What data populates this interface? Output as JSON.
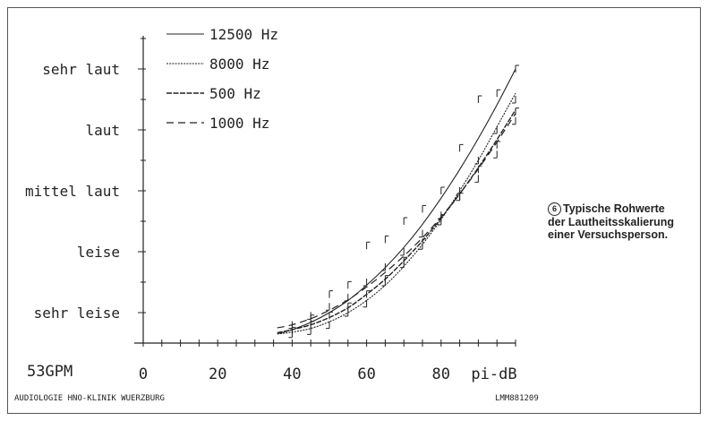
{
  "chart_data": {
    "type": "line",
    "title": "",
    "xlabel": "pi-dB",
    "ylabel": "",
    "xlim": [
      0,
      100
    ],
    "ylim": [
      0,
      5
    ],
    "x_ticks": [
      0,
      20,
      40,
      60,
      80
    ],
    "y_categories": [
      "sehr leise",
      "leise",
      "mittel laut",
      "laut",
      "sehr laut"
    ],
    "legend_position": "top-left",
    "series": [
      {
        "name": "12500 Hz",
        "dash": "solid",
        "curve_x": [
          36,
          40,
          45,
          50,
          55,
          60,
          65,
          70,
          75,
          80,
          85,
          90,
          95,
          100
        ],
        "curve_y": [
          -0.35,
          -0.28,
          -0.16,
          0.0,
          0.2,
          0.45,
          0.74,
          1.07,
          1.45,
          1.88,
          2.35,
          2.86,
          3.41,
          4.0
        ],
        "raw_x": [
          40,
          45,
          50,
          55,
          60,
          65,
          70,
          75,
          80,
          85,
          90,
          95,
          100
        ],
        "raw_y": [
          -0.25,
          -0.1,
          0.3,
          0.45,
          1.1,
          1.2,
          1.5,
          1.7,
          2.0,
          2.7,
          3.5,
          3.6,
          4.0
        ]
      },
      {
        "name": "8000 Hz",
        "dash": "fine",
        "curve_x": [
          36,
          40,
          45,
          50,
          55,
          60,
          65,
          70,
          75,
          80,
          85,
          90,
          95,
          100
        ],
        "curve_y": [
          -0.35,
          -0.32,
          -0.26,
          -0.15,
          0.0,
          0.2,
          0.45,
          0.76,
          1.12,
          1.53,
          2.0,
          2.5,
          3.05,
          3.6
        ],
        "raw_x": [
          40,
          45,
          50,
          55,
          60,
          65,
          70,
          75,
          80,
          85,
          90,
          95,
          100
        ],
        "raw_y": [
          -0.35,
          -0.3,
          -0.2,
          0.0,
          0.15,
          0.5,
          0.8,
          1.1,
          1.5,
          1.9,
          2.5,
          3.0,
          3.5
        ]
      },
      {
        "name": "500 Hz",
        "dash": "medium",
        "curve_x": [
          36,
          40,
          45,
          50,
          55,
          60,
          65,
          70,
          75,
          80,
          85,
          90,
          95,
          100
        ],
        "curve_y": [
          -0.33,
          -0.28,
          -0.2,
          -0.08,
          0.08,
          0.3,
          0.55,
          0.85,
          1.18,
          1.55,
          1.95,
          2.38,
          2.84,
          3.33
        ],
        "raw_x": [
          40,
          45,
          50,
          55,
          60,
          65,
          70,
          75,
          80,
          85,
          90,
          95,
          100
        ],
        "raw_y": [
          -0.3,
          -0.2,
          -0.05,
          0.1,
          0.3,
          0.55,
          0.85,
          1.15,
          1.55,
          1.9,
          2.35,
          2.75,
          3.3
        ]
      },
      {
        "name": "1000 Hz",
        "dash": "dashed",
        "curve_x": [
          36,
          40,
          45,
          50,
          55,
          60,
          65,
          70,
          75,
          80,
          85,
          90,
          95,
          100
        ],
        "curve_y": [
          -0.25,
          -0.2,
          -0.1,
          0.04,
          0.21,
          0.42,
          0.66,
          0.93,
          1.23,
          1.57,
          1.95,
          2.36,
          2.8,
          3.27
        ],
        "raw_x": [
          40,
          45,
          50,
          55,
          60,
          65,
          70,
          75,
          80,
          85,
          90,
          95,
          100
        ],
        "raw_y": [
          -0.2,
          -0.05,
          0.1,
          0.25,
          0.5,
          0.75,
          1.0,
          1.3,
          1.6,
          2.0,
          2.2,
          2.6,
          3.15
        ]
      }
    ]
  },
  "caption": {
    "number": "6",
    "lines": [
      "Typische Rohwerte",
      "der Lautheitsskalierung",
      "einer Versuchsperson."
    ]
  },
  "corner_label": "53GPM",
  "footer": {
    "left": "AUDIOLOGIE HNO-KLINIK WUERZBURG",
    "right": "LMM881209"
  }
}
